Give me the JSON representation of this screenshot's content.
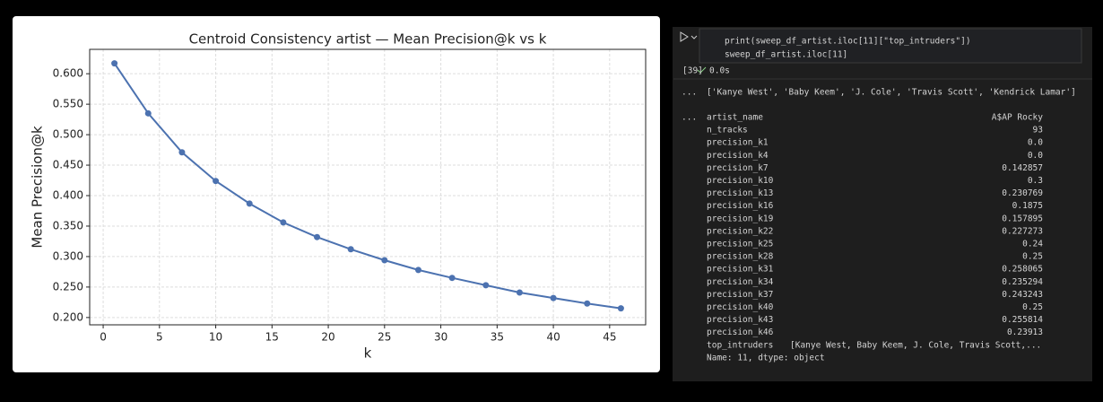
{
  "chart_data": {
    "type": "line",
    "title": "Centroid Consistency artist — Mean Precision@k vs k",
    "x_label": "k",
    "y_label": "Mean Precision@k",
    "x": [
      1,
      4,
      7,
      10,
      13,
      16,
      19,
      22,
      25,
      28,
      31,
      34,
      37,
      40,
      43,
      46
    ],
    "series": [
      {
        "name": "Mean Precision@k",
        "color": "#4c72b0",
        "values": [
          0.617,
          0.535,
          0.471,
          0.424,
          0.387,
          0.356,
          0.332,
          0.312,
          0.294,
          0.278,
          0.265,
          0.253,
          0.241,
          0.232,
          0.223,
          0.215
        ]
      }
    ],
    "xlim": [
      -1.2,
      48.2
    ],
    "ylim": [
      0.188,
      0.64
    ],
    "xticks": [
      0,
      5,
      10,
      15,
      20,
      25,
      30,
      35,
      40,
      45
    ],
    "yticks": [
      {
        "value": 0.2,
        "label": "0.200"
      },
      {
        "value": 0.25,
        "label": "0.250"
      },
      {
        "value": 0.3,
        "label": "0.300"
      },
      {
        "value": 0.35,
        "label": "0.350"
      },
      {
        "value": 0.4,
        "label": "0.400"
      },
      {
        "value": 0.45,
        "label": "0.450"
      },
      {
        "value": 0.5,
        "label": "0.500"
      },
      {
        "value": 0.55,
        "label": "0.550"
      },
      {
        "value": 0.6,
        "label": "0.600"
      }
    ],
    "grid": true
  },
  "notebook": {
    "cell": {
      "code": [
        "print(sweep_df_artist.iloc[11][\"top_intruders\"])",
        "sweep_df_artist.iloc[11]"
      ],
      "execution_count": "[39]",
      "duration": "0.0s"
    },
    "output_prompt": "...",
    "outputs": {
      "printed": "['Kanye West', 'Baby Keem', 'J. Cole', 'Travis Scott', 'Kendrick Lamar']",
      "series_rows": [
        [
          "artist_name",
          "A$AP Rocky"
        ],
        [
          "n_tracks",
          "93"
        ],
        [
          "precision_k1",
          "0.0"
        ],
        [
          "precision_k4",
          "0.0"
        ],
        [
          "precision_k7",
          "0.142857"
        ],
        [
          "precision_k10",
          "0.3"
        ],
        [
          "precision_k13",
          "0.230769"
        ],
        [
          "precision_k16",
          "0.1875"
        ],
        [
          "precision_k19",
          "0.157895"
        ],
        [
          "precision_k22",
          "0.227273"
        ],
        [
          "precision_k25",
          "0.24"
        ],
        [
          "precision_k28",
          "0.25"
        ],
        [
          "precision_k31",
          "0.258065"
        ],
        [
          "precision_k34",
          "0.235294"
        ],
        [
          "precision_k37",
          "0.243243"
        ],
        [
          "precision_k40",
          "0.25"
        ],
        [
          "precision_k43",
          "0.255814"
        ],
        [
          "precision_k46",
          "0.23913"
        ],
        [
          "top_intruders",
          "[Kanye West, Baby Keem, J. Cole, Travis Scott,..."
        ]
      ],
      "footer": "Name: 11, dtype: object"
    }
  }
}
